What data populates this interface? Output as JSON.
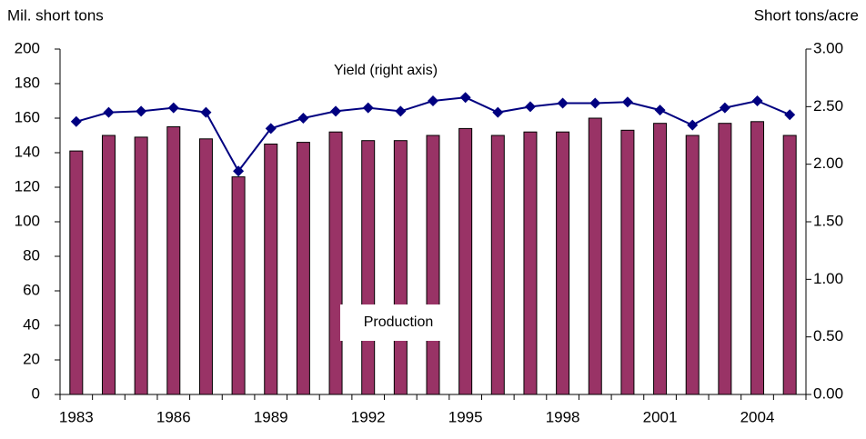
{
  "chart_data": {
    "type": "bar_line",
    "y_label": "Mil. short tons",
    "y2_label": "Short tons/acre",
    "categories": [
      "1983",
      null,
      null,
      "1986",
      null,
      null,
      "1989",
      null,
      null,
      "1992",
      null,
      null,
      "1995",
      null,
      null,
      "1998",
      null,
      null,
      "2001",
      null,
      null,
      "2004",
      null
    ],
    "series": [
      {
        "name": "Production",
        "type": "bar",
        "color": "#993366",
        "values": [
          141,
          150,
          149,
          155,
          148,
          126,
          145,
          146,
          152,
          147,
          147,
          150,
          154,
          150,
          152,
          152,
          160,
          153,
          157,
          150,
          157,
          158,
          150
        ]
      },
      {
        "name": "Yield (right axis)",
        "type": "line",
        "axis": "y2",
        "color": "#000080",
        "values": [
          2.37,
          2.45,
          2.46,
          2.49,
          2.45,
          1.94,
          2.31,
          2.4,
          2.46,
          2.49,
          2.46,
          2.55,
          2.58,
          2.45,
          2.5,
          2.53,
          2.53,
          2.54,
          2.47,
          2.34,
          2.49,
          2.55,
          2.43
        ]
      }
    ],
    "ylim": [
      0,
      200
    ],
    "yticks": [
      0,
      20,
      40,
      60,
      80,
      100,
      120,
      140,
      160,
      180,
      200
    ],
    "y2lim": [
      0,
      3
    ],
    "y2ticks": [
      {
        "value": 0,
        "label": "0.00"
      },
      {
        "value": 0.5,
        "label": "0.50"
      },
      {
        "value": 1,
        "label": "1.00"
      },
      {
        "value": 1.5,
        "label": "1.50"
      },
      {
        "value": 2,
        "label": "2.00"
      },
      {
        "value": 2.5,
        "label": "2.50"
      },
      {
        "value": 3,
        "label": "3.00"
      }
    ],
    "grid": false
  }
}
